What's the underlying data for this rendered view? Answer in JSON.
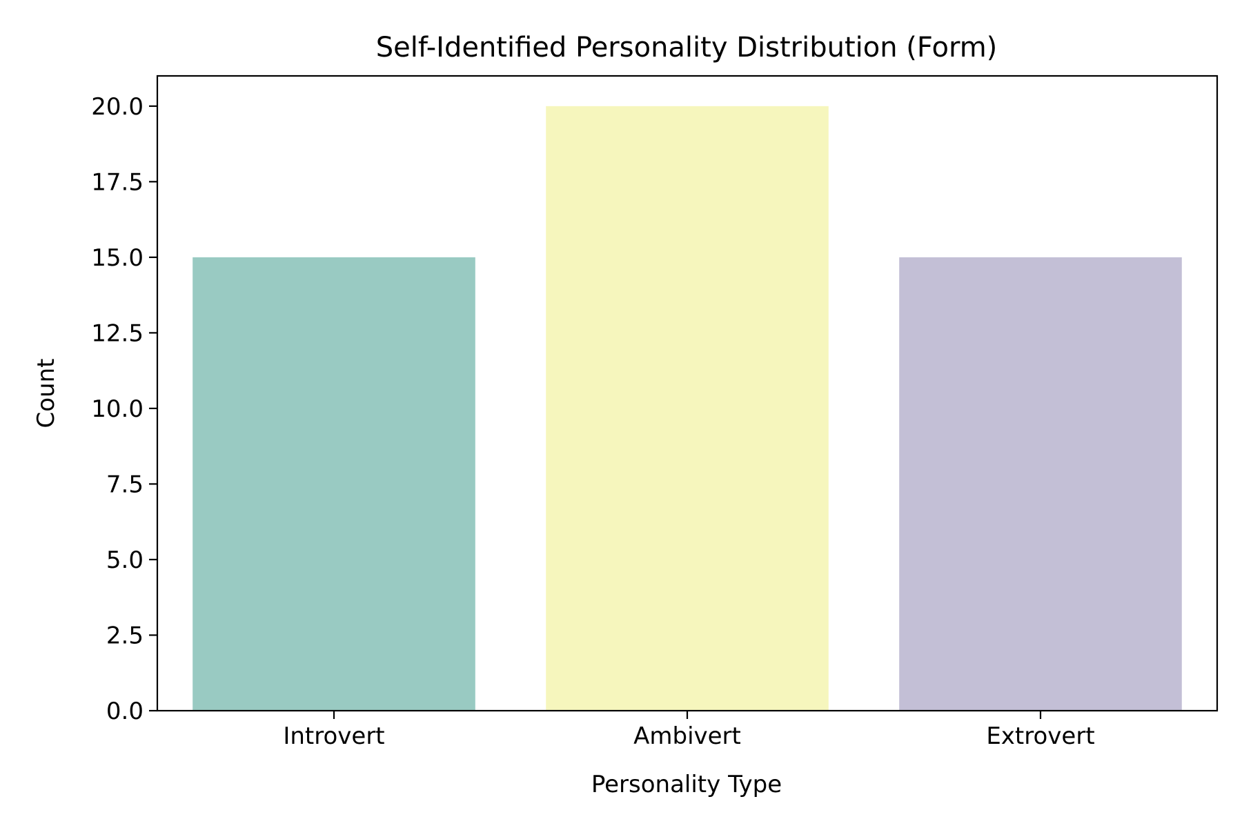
{
  "chart_data": {
    "type": "bar",
    "title": "Self-Identified Personality Distribution (Form)",
    "xlabel": "Personality Type",
    "ylabel": "Count",
    "categories": [
      "Introvert",
      "Ambivert",
      "Extrovert"
    ],
    "values": [
      15,
      20,
      15
    ],
    "colors": [
      "#99cac2",
      "#f6f6bd",
      "#c3bfd6"
    ],
    "ylim": [
      0,
      21
    ],
    "yticks": [
      0,
      2.5,
      5,
      7.5,
      10,
      12.5,
      15,
      17.5,
      20
    ],
    "ytick_labels": [
      "0.0",
      "2.5",
      "5.0",
      "7.5",
      "10.0",
      "12.5",
      "15.0",
      "17.5",
      "20.0"
    ],
    "grid": false,
    "legend": "none"
  }
}
